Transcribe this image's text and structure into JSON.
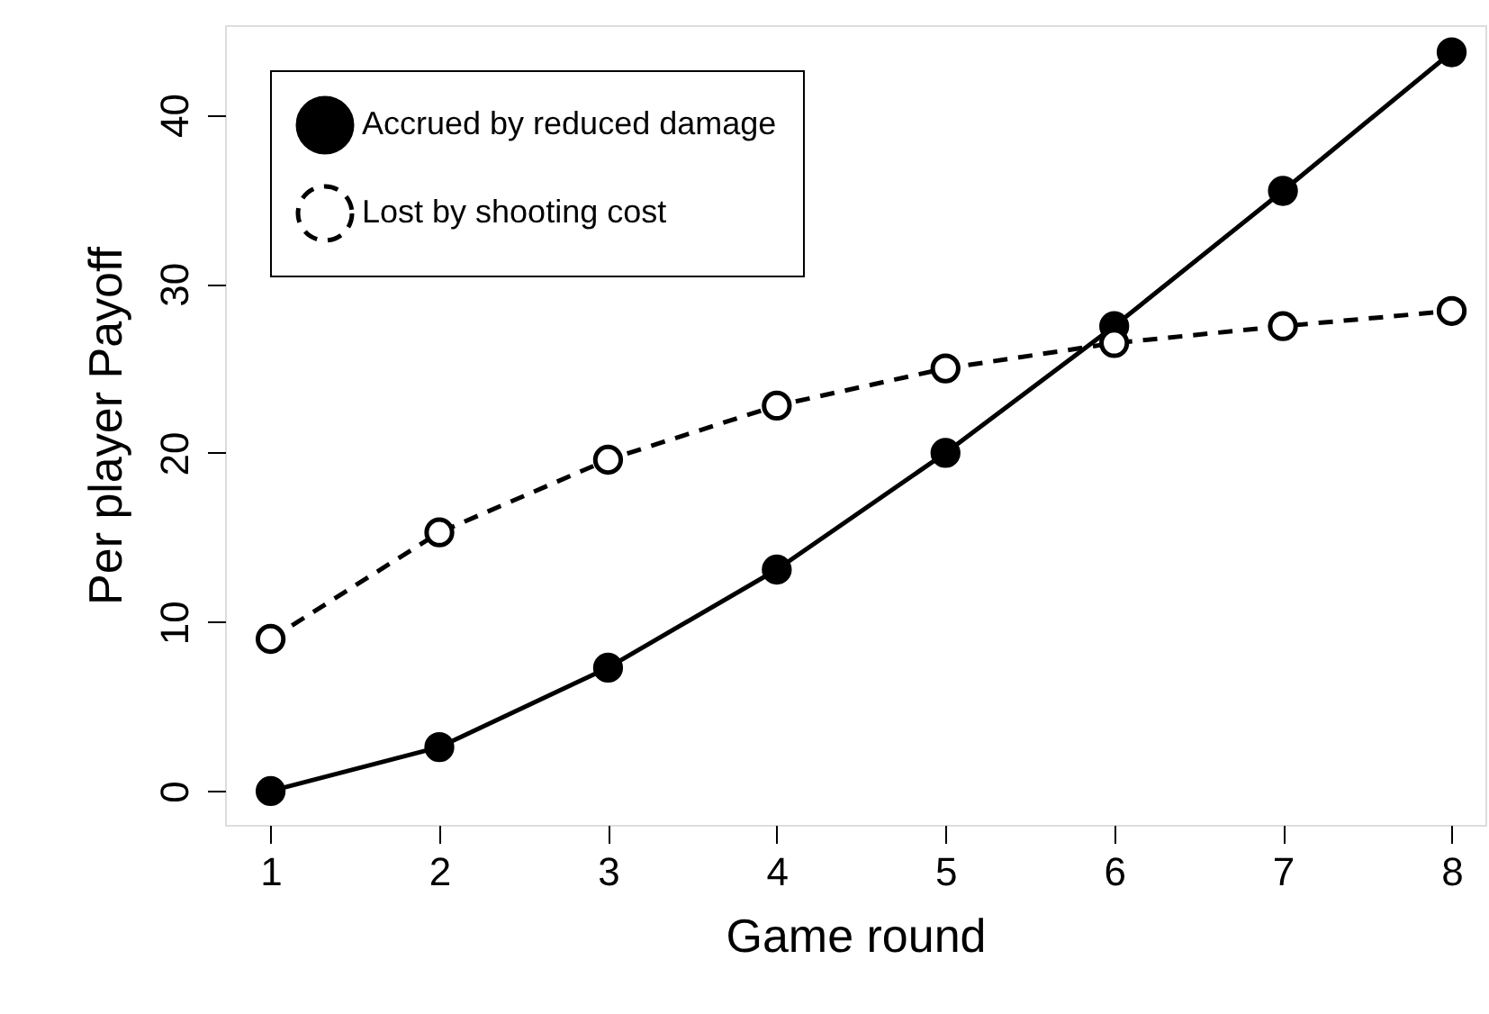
{
  "chart_data": {
    "type": "line",
    "xlabel": "Game round",
    "ylabel": "Per player Payoff",
    "x": [
      1,
      2,
      3,
      4,
      5,
      6,
      7,
      8
    ],
    "series": [
      {
        "name": "Accrued by reduced damage",
        "color": "#000000",
        "line_style": "solid",
        "marker": "circle",
        "values": [
          0,
          2.6,
          7.3,
          13.1,
          20.0,
          27.5,
          35.5,
          43.7
        ]
      },
      {
        "name": "Lost by shooting cost",
        "color": "#000000",
        "line_style": "dashed",
        "marker": "circle",
        "values": [
          9.0,
          15.3,
          19.6,
          22.8,
          25.0,
          26.5,
          27.5,
          28.4
        ]
      }
    ],
    "xlim": [
      0.73,
      8.2
    ],
    "ylim": [
      -2,
      45.3
    ],
    "xticks": [
      1,
      2,
      3,
      4,
      5,
      6,
      7,
      8
    ],
    "yticks": [
      0,
      10,
      20,
      30,
      40
    ],
    "grid": false,
    "legend": "top left"
  }
}
